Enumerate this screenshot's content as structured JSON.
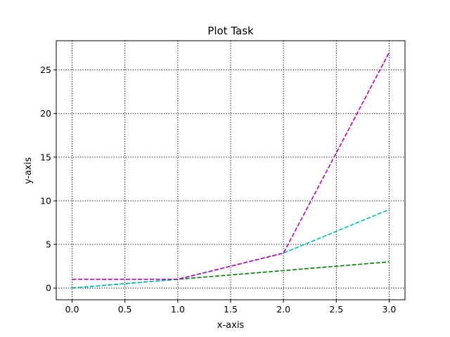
{
  "chart_data": {
    "type": "line",
    "title": "Plot Task",
    "xlabel": "x-axis",
    "ylabel": "y-axis",
    "x": [
      0,
      1,
      2,
      3
    ],
    "series": [
      {
        "values": [
          0,
          1,
          2,
          3
        ],
        "color": "#008000",
        "linestyle": "dashed"
      },
      {
        "values": [
          0,
          1,
          4,
          9
        ],
        "color": "#00bfbf",
        "linestyle": "dashed"
      },
      {
        "values": [
          1,
          1,
          4,
          27
        ],
        "color": "#bf00bf",
        "linestyle": "dashed"
      }
    ],
    "xticks": [
      0.0,
      0.5,
      1.0,
      1.5,
      2.0,
      2.5,
      3.0
    ],
    "xtick_labels": [
      "0.0",
      "0.5",
      "1.0",
      "1.5",
      "2.0",
      "2.5",
      "3.0"
    ],
    "yticks": [
      0,
      5,
      10,
      15,
      20,
      25
    ],
    "ytick_labels": [
      "0",
      "5",
      "10",
      "15",
      "20",
      "25"
    ],
    "xlim": [
      -0.15,
      3.15
    ],
    "ylim": [
      -1.35,
      28.35
    ],
    "grid": true,
    "grid_style": "dotted",
    "legend": null
  }
}
